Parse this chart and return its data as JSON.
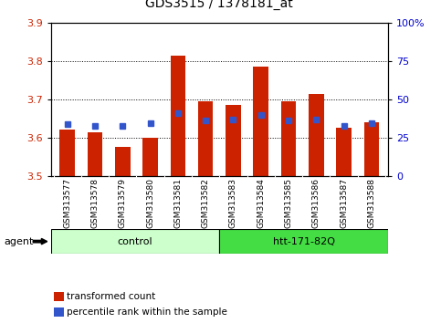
{
  "title": "GDS3515 / 1378181_at",
  "samples": [
    "GSM313577",
    "GSM313578",
    "GSM313579",
    "GSM313580",
    "GSM313581",
    "GSM313582",
    "GSM313583",
    "GSM313584",
    "GSM313585",
    "GSM313586",
    "GSM313587",
    "GSM313588"
  ],
  "red_values": [
    3.62,
    3.615,
    3.575,
    3.6,
    3.815,
    3.695,
    3.685,
    3.785,
    3.695,
    3.715,
    3.625,
    3.64
  ],
  "blue_values": [
    3.635,
    3.63,
    3.63,
    3.638,
    3.665,
    3.645,
    3.648,
    3.66,
    3.645,
    3.648,
    3.63,
    3.638
  ],
  "ymin": 3.5,
  "ymax": 3.9,
  "yticks_left": [
    3.5,
    3.6,
    3.7,
    3.8,
    3.9
  ],
  "yticks_right": [
    0,
    25,
    50,
    75,
    100
  ],
  "ytick_labels_right": [
    "0",
    "25",
    "50",
    "75",
    "100%"
  ],
  "grid_values": [
    3.6,
    3.7,
    3.8
  ],
  "bar_color": "#cc2200",
  "blue_color": "#3355cc",
  "control_group_count": 6,
  "control_label": "control",
  "htt_label": "htt-171-82Q",
  "agent_label": "agent",
  "legend_red": "transformed count",
  "legend_blue": "percentile rank within the sample",
  "control_bg": "#ccffcc",
  "htt_bg": "#44dd44",
  "tick_area_bg": "#c8c8c8",
  "title_fontsize": 10,
  "axis_label_color_left": "#cc2200",
  "axis_label_color_right": "#0000cc"
}
